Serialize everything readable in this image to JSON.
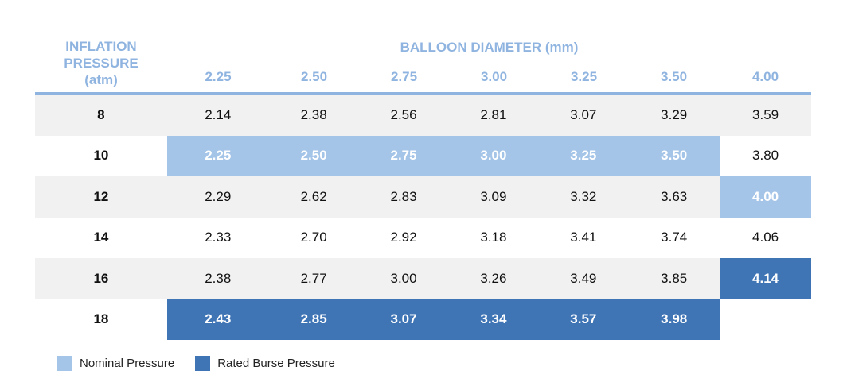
{
  "header": {
    "row_axis_lines": [
      "INFLATION",
      "PRESSURE",
      "(atm)"
    ],
    "column_axis_title": "BALLOON DIAMETER (mm)"
  },
  "columns": [
    "2.25",
    "2.50",
    "2.75",
    "3.00",
    "3.25",
    "3.50",
    "4.00"
  ],
  "rows": [
    {
      "pressure": "8",
      "values": [
        "2.14",
        "2.38",
        "2.56",
        "2.81",
        "3.07",
        "3.29",
        "3.59"
      ],
      "styles": [
        "",
        "",
        "",
        "",
        "",
        "",
        ""
      ]
    },
    {
      "pressure": "10",
      "values": [
        "2.25",
        "2.50",
        "2.75",
        "3.00",
        "3.25",
        "3.50",
        "3.80"
      ],
      "styles": [
        "nominal",
        "nominal",
        "nominal",
        "nominal",
        "nominal",
        "nominal",
        ""
      ]
    },
    {
      "pressure": "12",
      "values": [
        "2.29",
        "2.62",
        "2.83",
        "3.09",
        "3.32",
        "3.63",
        "4.00"
      ],
      "styles": [
        "",
        "",
        "",
        "",
        "",
        "",
        "nominal"
      ]
    },
    {
      "pressure": "14",
      "values": [
        "2.33",
        "2.70",
        "2.92",
        "3.18",
        "3.41",
        "3.74",
        "4.06"
      ],
      "styles": [
        "",
        "",
        "",
        "",
        "",
        "",
        ""
      ]
    },
    {
      "pressure": "16",
      "values": [
        "2.38",
        "2.77",
        "3.00",
        "3.26",
        "3.49",
        "3.85",
        "4.14"
      ],
      "styles": [
        "",
        "",
        "",
        "",
        "",
        "",
        "burst"
      ]
    },
    {
      "pressure": "18",
      "values": [
        "2.43",
        "2.85",
        "3.07",
        "3.34",
        "3.57",
        "3.98",
        ""
      ],
      "styles": [
        "burst",
        "burst",
        "burst",
        "burst",
        "burst",
        "burst",
        "blank"
      ]
    }
  ],
  "legend": {
    "nominal_label": "Nominal Pressure",
    "burst_label": "Rated Burse Pressure"
  },
  "colors": {
    "header_text": "#8fb4e0",
    "nominal": "#a4c4e8",
    "rated_burst": "#3f74b5",
    "row_shade": "#f1f1f1"
  }
}
